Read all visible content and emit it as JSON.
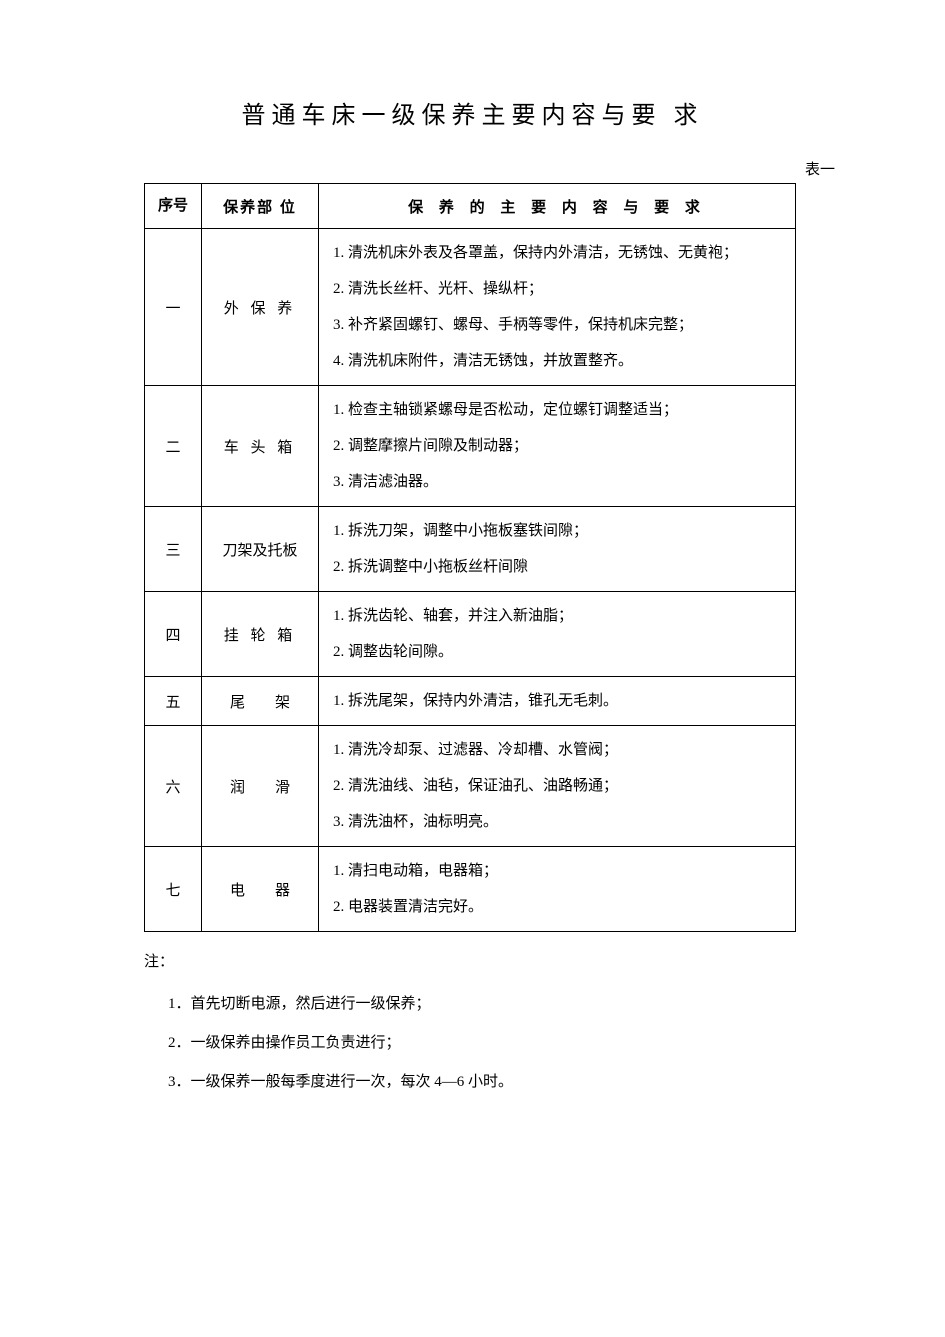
{
  "title": "普通车床一级保养主要内容与要 求",
  "table_label": "表一",
  "columns": {
    "num": "序号",
    "part": "保养部 位",
    "req": "保 养 的 主 要 内 容 与 要 求"
  },
  "rows": [
    {
      "num": "一",
      "part": "外 保 养",
      "items": [
        "1. 清洗机床外表及各罩盖，保持内外清洁，无锈蚀、无黄袍；",
        "2. 清洗长丝杆、光杆、操纵杆；",
        "3. 补齐紧固螺钉、螺母、手柄等零件，保持机床完整；",
        "4. 清洗机床附件，清洁无锈蚀，并放置整齐。"
      ]
    },
    {
      "num": "二",
      "part": "车 头 箱",
      "items": [
        "1. 检查主轴锁紧螺母是否松动，定位螺钉调整适当；",
        "2. 调整摩擦片间隙及制动器；",
        "3. 清洁滤油器。"
      ]
    },
    {
      "num": "三",
      "part": "刀架及托板",
      "part_spread": false,
      "items": [
        "1. 拆洗刀架，调整中小拖板塞铁间隙；",
        "2. 拆洗调整中小拖板丝杆间隙"
      ]
    },
    {
      "num": "四",
      "part": "挂 轮 箱",
      "items": [
        "1. 拆洗齿轮、轴套，并注入新油脂；",
        "2. 调整齿轮间隙。"
      ]
    },
    {
      "num": "五",
      "part": "尾　　架",
      "part_spread": true,
      "items": [
        "1. 拆洗尾架，保持内外清洁，锥孔无毛刺。"
      ]
    },
    {
      "num": "六",
      "part": "润　　滑",
      "part_spread": true,
      "items": [
        "1. 清洗冷却泵、过滤器、冷却槽、水管阀；",
        "2. 清洗油线、油毡，保证油孔、油路畅通；",
        "3. 清洗油杯，油标明亮。"
      ]
    },
    {
      "num": "七",
      "part": "电　　器",
      "part_spread": true,
      "items": [
        "1. 清扫电动箱，电器箱；",
        "2. 电器装置清洁完好。"
      ]
    }
  ],
  "notes_heading": "注：",
  "notes": [
    "1．首先切断电源，然后进行一级保养；",
    "2．一级保养由操作员工负责进行；",
    "3．一级保养一般每季度进行一次，每次 4—6 小时。"
  ]
}
